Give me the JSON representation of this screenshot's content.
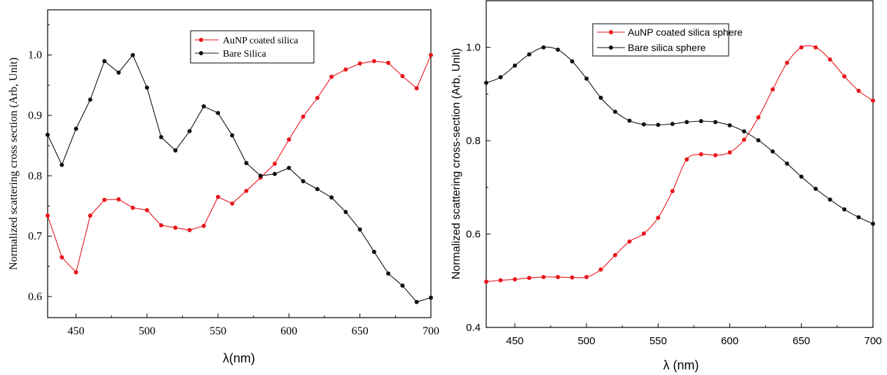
{
  "chart_data": [
    {
      "type": "line",
      "title": "",
      "xlabel": "λ(nm)",
      "ylabel": "Normalized scattering cross section (Arb, Unit)",
      "xlim": [
        430,
        700
      ],
      "ylim": [
        0.565,
        1.075
      ],
      "x_ticks": [
        450,
        500,
        550,
        600,
        650,
        700
      ],
      "y_ticks": [
        0.6,
        0.7,
        0.8,
        0.9,
        1.0
      ],
      "x_tick_labels": [
        "450",
        "500",
        "550",
        "600",
        "650",
        "700"
      ],
      "y_tick_labels": [
        "0.6",
        "0.7",
        "0.8",
        "0.9",
        "1.0"
      ],
      "grid": false,
      "legend_position": "top-right",
      "series": [
        {
          "name": "AuNP coated silica",
          "color": "#e8141b",
          "x": [
            430,
            440,
            450,
            460,
            470,
            480,
            490,
            500,
            510,
            520,
            530,
            540,
            550,
            560,
            570,
            580,
            590,
            600,
            610,
            620,
            630,
            640,
            650,
            660,
            670,
            680,
            690,
            700
          ],
          "values": [
            0.734,
            0.665,
            0.64,
            0.734,
            0.76,
            0.761,
            0.747,
            0.743,
            0.718,
            0.714,
            0.71,
            0.717,
            0.765,
            0.754,
            0.775,
            0.797,
            0.82,
            0.86,
            0.898,
            0.929,
            0.964,
            0.976,
            0.986,
            0.99,
            0.987,
            0.965,
            0.945,
            1.0
          ]
        },
        {
          "name": "Bare Silica",
          "color": "#111111",
          "x": [
            430,
            440,
            450,
            460,
            470,
            480,
            490,
            500,
            510,
            520,
            530,
            540,
            550,
            560,
            570,
            580,
            590,
            600,
            610,
            620,
            630,
            640,
            650,
            660,
            670,
            680,
            690,
            700
          ],
          "values": [
            0.868,
            0.818,
            0.878,
            0.926,
            0.99,
            0.971,
            1.0,
            0.946,
            0.864,
            0.842,
            0.874,
            0.915,
            0.904,
            0.867,
            0.821,
            0.8,
            0.803,
            0.813,
            0.791,
            0.778,
            0.764,
            0.74,
            0.711,
            0.674,
            0.638,
            0.618,
            0.591,
            0.598
          ]
        }
      ]
    },
    {
      "type": "line",
      "title": "",
      "xlabel": "λ (nm)",
      "ylabel": "Normalized scattering cross-section (Arb, Unit)",
      "xlim": [
        430,
        700
      ],
      "ylim": [
        0.4,
        1.1
      ],
      "x_ticks": [
        450,
        500,
        550,
        600,
        650,
        700
      ],
      "y_ticks": [
        0.4,
        0.6,
        0.8,
        1.0
      ],
      "x_tick_labels": [
        "450",
        "500",
        "550",
        "600",
        "650",
        "700"
      ],
      "y_tick_labels": [
        "0.4",
        "0.6",
        "0.8",
        "1.0"
      ],
      "grid": false,
      "legend_position": "top-left",
      "series": [
        {
          "name": "AuNP coated silica sphere",
          "color": "#e8141b",
          "x": [
            430,
            440,
            450,
            460,
            470,
            480,
            490,
            500,
            510,
            520,
            530,
            540,
            550,
            560,
            570,
            580,
            590,
            600,
            610,
            620,
            630,
            640,
            650,
            660,
            670,
            680,
            690,
            700
          ],
          "values": [
            0.498,
            0.501,
            0.503,
            0.506,
            0.508,
            0.508,
            0.507,
            0.508,
            0.524,
            0.555,
            0.584,
            0.601,
            0.635,
            0.692,
            0.76,
            0.771,
            0.769,
            0.775,
            0.802,
            0.85,
            0.91,
            0.967,
            1.0,
            1.0,
            0.974,
            0.938,
            0.907,
            0.886
          ]
        },
        {
          "name": "Bare silica sphere",
          "color": "#111111",
          "x": [
            430,
            440,
            450,
            460,
            470,
            480,
            490,
            500,
            510,
            520,
            530,
            540,
            550,
            560,
            570,
            580,
            590,
            600,
            610,
            620,
            630,
            640,
            650,
            660,
            670,
            680,
            690,
            700
          ],
          "values": [
            0.924,
            0.936,
            0.961,
            0.985,
            1.0,
            0.995,
            0.97,
            0.933,
            0.892,
            0.862,
            0.843,
            0.835,
            0.834,
            0.836,
            0.84,
            0.842,
            0.84,
            0.833,
            0.82,
            0.801,
            0.777,
            0.751,
            0.723,
            0.697,
            0.674,
            0.653,
            0.636,
            0.622
          ]
        }
      ]
    }
  ]
}
